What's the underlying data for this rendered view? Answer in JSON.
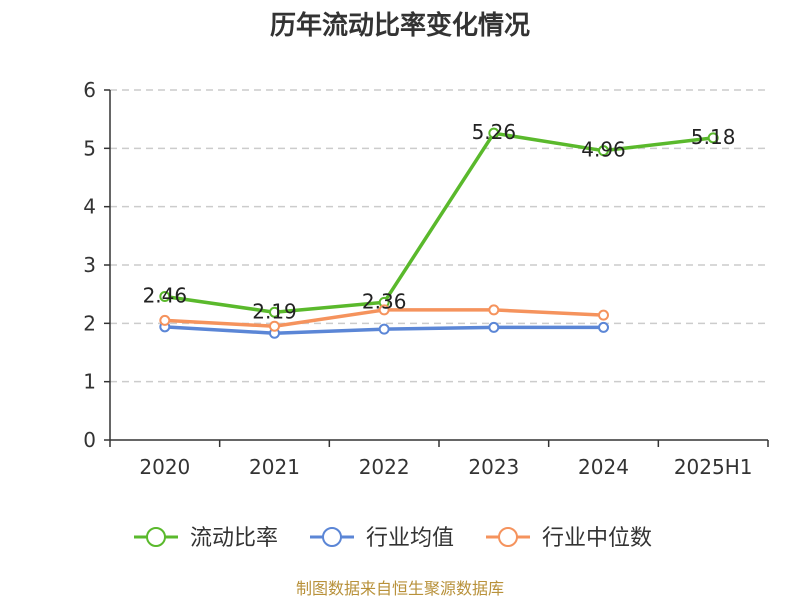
{
  "chart_data": {
    "type": "line",
    "title": "历年流动比率变化情况",
    "categories": [
      "2020",
      "2021",
      "2022",
      "2023",
      "2024",
      "2025H1"
    ],
    "ylim": [
      0,
      6
    ],
    "yticks": [
      "0",
      "1",
      "2",
      "3",
      "4",
      "5",
      "6"
    ],
    "grid": true,
    "legend_position": "bottom",
    "series": [
      {
        "name": "流动比率",
        "color": "#5ab92c",
        "values": [
          2.46,
          2.19,
          2.36,
          5.26,
          4.96,
          5.18
        ],
        "labels": [
          "2.46",
          "2.19",
          "2.36",
          "5.26",
          "4.96",
          "5.18"
        ]
      },
      {
        "name": "行业均值",
        "color": "#5b86d6",
        "values": [
          1.94,
          1.83,
          1.9,
          1.93,
          1.93,
          null
        ],
        "labels": []
      },
      {
        "name": "行业中位数",
        "color": "#f5935d",
        "values": [
          2.05,
          1.95,
          2.23,
          2.23,
          2.14,
          null
        ],
        "labels": []
      }
    ]
  },
  "source_note": "制图数据来自恒生聚源数据库"
}
